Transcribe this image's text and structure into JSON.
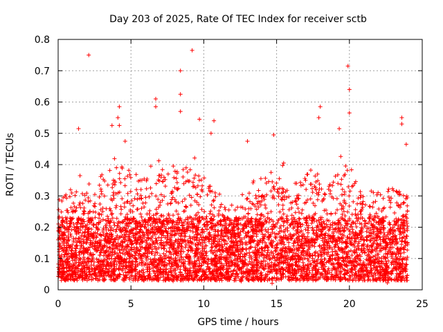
{
  "chart_data": {
    "type": "scatter",
    "title": "Day 203 of 2025, Rate Of TEC Index for receiver sctb",
    "xlabel": "GPS time / hours",
    "ylabel": "ROTI / TECUs",
    "xlim": [
      0,
      25
    ],
    "ylim": [
      0,
      0.8
    ],
    "xticks": [
      "0",
      "5",
      "10",
      "15",
      "20",
      "25"
    ],
    "yticks": [
      "0",
      "0.1",
      "0.2",
      "0.3",
      "0.4",
      "0.5",
      "0.6",
      "0.7",
      "0.8"
    ],
    "grid": true,
    "marker": "+",
    "color": "#ff0000",
    "highlights": [
      {
        "x": 2.1,
        "y": 0.75
      },
      {
        "x": 9.2,
        "y": 0.765
      },
      {
        "x": 8.4,
        "y": 0.7
      },
      {
        "x": 19.9,
        "y": 0.715
      },
      {
        "x": 20.0,
        "y": 0.64
      },
      {
        "x": 6.7,
        "y": 0.61
      },
      {
        "x": 6.7,
        "y": 0.585
      },
      {
        "x": 8.4,
        "y": 0.625
      },
      {
        "x": 8.4,
        "y": 0.57
      },
      {
        "x": 4.2,
        "y": 0.585
      },
      {
        "x": 4.1,
        "y": 0.55
      },
      {
        "x": 4.2,
        "y": 0.525
      },
      {
        "x": 18.0,
        "y": 0.585
      },
      {
        "x": 17.9,
        "y": 0.55
      },
      {
        "x": 20.0,
        "y": 0.565
      },
      {
        "x": 19.3,
        "y": 0.515
      },
      {
        "x": 23.6,
        "y": 0.55
      },
      {
        "x": 23.6,
        "y": 0.53
      },
      {
        "x": 9.7,
        "y": 0.545
      },
      {
        "x": 10.7,
        "y": 0.54
      },
      {
        "x": 1.4,
        "y": 0.515
      },
      {
        "x": 3.7,
        "y": 0.525
      },
      {
        "x": 14.8,
        "y": 0.495
      },
      {
        "x": 13.0,
        "y": 0.475
      },
      {
        "x": 23.9,
        "y": 0.465
      },
      {
        "x": 4.6,
        "y": 0.475
      },
      {
        "x": 10.5,
        "y": 0.5
      }
    ],
    "density_profile": {
      "x": [
        0,
        1,
        2,
        3,
        4,
        5,
        6,
        7,
        8,
        9,
        10,
        11,
        12,
        13,
        14,
        15,
        16,
        17,
        18,
        19,
        20,
        21,
        22,
        23,
        24
      ],
      "typical_max": [
        0.32,
        0.36,
        0.33,
        0.4,
        0.44,
        0.4,
        0.38,
        0.4,
        0.42,
        0.42,
        0.4,
        0.32,
        0.3,
        0.34,
        0.36,
        0.4,
        0.38,
        0.4,
        0.4,
        0.42,
        0.4,
        0.36,
        0.34,
        0.36,
        0.33
      ]
    }
  }
}
